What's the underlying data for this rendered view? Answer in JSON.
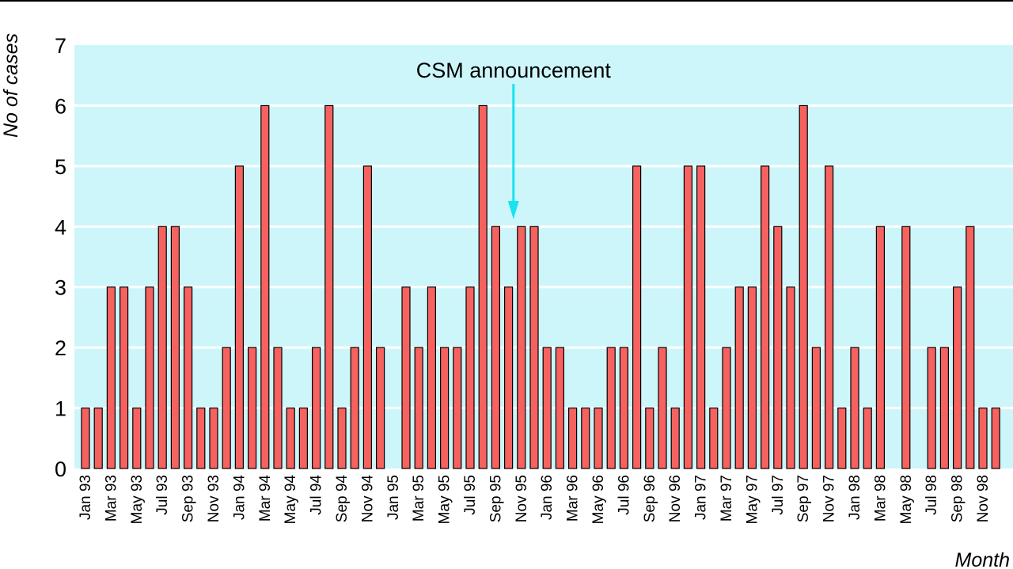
{
  "chart_data": {
    "type": "bar",
    "ylabel": "No of cases",
    "xlabel": "Month",
    "ylim": [
      0,
      7
    ],
    "yticks": [
      "0",
      "1",
      "2",
      "3",
      "4",
      "5",
      "6",
      "7"
    ],
    "grid": true,
    "categories": [
      "Jan 93",
      "Feb 93",
      "Mar 93",
      "Apr 93",
      "May 93",
      "Jun 93",
      "Jul 93",
      "Aug 93",
      "Sep 93",
      "Oct 93",
      "Nov 93",
      "Dec 93",
      "Jan 94",
      "Feb 94",
      "Mar 94",
      "Apr 94",
      "May 94",
      "Jun 94",
      "Jul 94",
      "Aug 94",
      "Sep 94",
      "Oct 94",
      "Nov 94",
      "Dec 94",
      "Jan 95",
      "Feb 95",
      "Mar 95",
      "Apr 95",
      "May 95",
      "Jun 95",
      "Jul 95",
      "Aug 95",
      "Sep 95",
      "Oct 95",
      "Nov 95",
      "Dec 95",
      "Jan 96",
      "Feb 96",
      "Mar 96",
      "Apr 96",
      "May 96",
      "Jun 96",
      "Jul 96",
      "Aug 96",
      "Sep 96",
      "Oct 96",
      "Nov 96",
      "Dec 96",
      "Jan 97",
      "Feb 97",
      "Mar 97",
      "Apr 97",
      "May 97",
      "Jun 97",
      "Jul 97",
      "Aug 97",
      "Sep 97",
      "Oct 97",
      "Nov 97",
      "Dec 97",
      "Jan 98",
      "Feb 98",
      "Mar 98",
      "Apr 98",
      "May 98",
      "Jun 98",
      "Jul 98",
      "Aug 98",
      "Sep 98",
      "Oct 98",
      "Nov 98",
      "Dec 98"
    ],
    "labeled_categories": [
      "Jan 93",
      "Mar 93",
      "May 93",
      "Jul 93",
      "Sep 93",
      "Nov 93",
      "Jan 94",
      "Mar 94",
      "May 94",
      "Jul 94",
      "Sep 94",
      "Nov 94",
      "Jan 95",
      "Mar 95",
      "May 95",
      "Jul 95",
      "Sep 95",
      "Nov 95",
      "Jan 96",
      "Mar 96",
      "May 96",
      "Jul 96",
      "Sep 96",
      "Nov 96",
      "Jan 97",
      "Mar 97",
      "May 97",
      "Jul 97",
      "Sep 97",
      "Nov 97",
      "Jan 98",
      "Mar 98",
      "May 98",
      "Jul 98",
      "Sep 98",
      "Nov 98"
    ],
    "values": [
      1,
      1,
      3,
      3,
      1,
      3,
      4,
      4,
      3,
      1,
      1,
      2,
      5,
      2,
      6,
      2,
      1,
      1,
      2,
      6,
      1,
      2,
      5,
      2,
      0,
      3,
      2,
      3,
      2,
      2,
      3,
      6,
      4,
      3,
      4,
      4,
      2,
      2,
      1,
      1,
      1,
      2,
      2,
      5,
      1,
      2,
      1,
      5,
      5,
      1,
      2,
      3,
      3,
      5,
      4,
      3,
      6,
      2,
      5,
      1,
      2,
      1,
      4,
      0,
      4,
      0,
      2,
      2,
      3,
      4,
      1,
      1
    ],
    "annotation": {
      "text": "CSM announcement",
      "category": "Nov 95"
    },
    "colors": {
      "bar_fill": "#f56260",
      "bar_stroke": "#000000",
      "plot_background": "#cdf6fa",
      "grid": "#ffffff",
      "arrow": "#19e3f0"
    }
  }
}
